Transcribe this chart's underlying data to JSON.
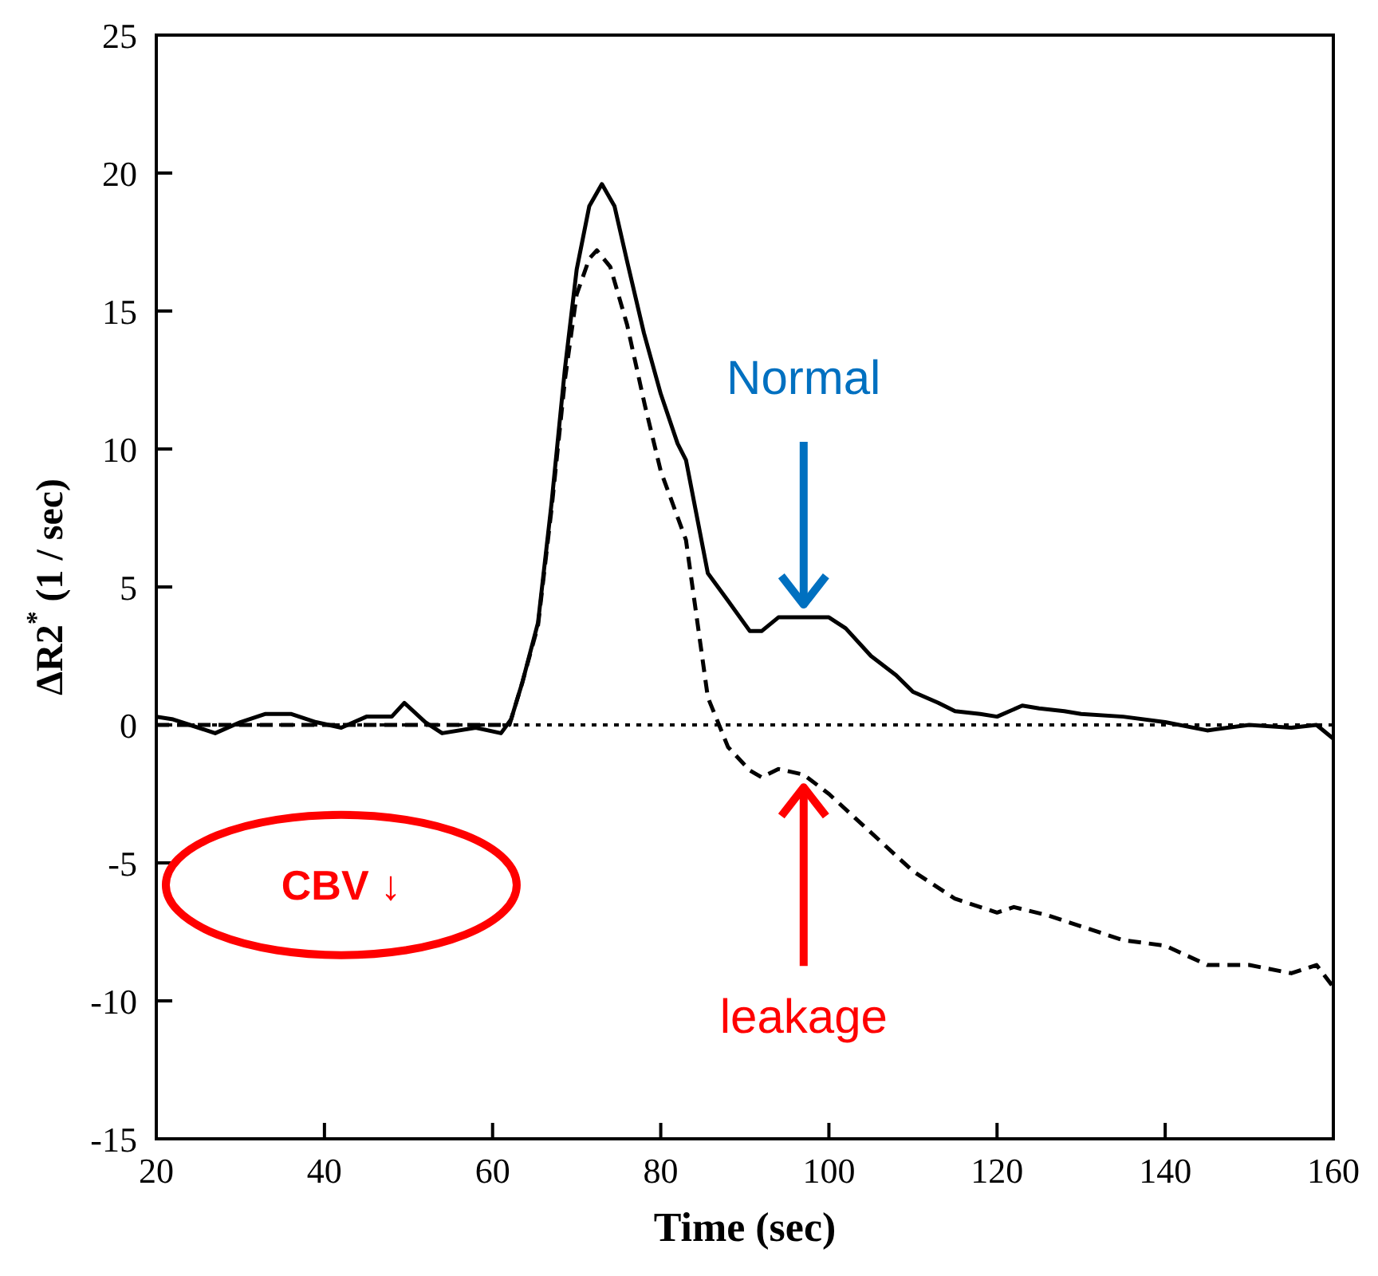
{
  "chart_data": {
    "type": "line",
    "xlabel": "Time (sec)",
    "ylabel": "ΔR2$^{*}$ (1 / sec)",
    "xlim": [
      20,
      160
    ],
    "ylim": [
      -15,
      25
    ],
    "xticks": [
      20,
      40,
      60,
      80,
      100,
      120,
      140,
      160
    ],
    "yticks": [
      -15,
      -10,
      -5,
      0,
      5,
      10,
      15,
      20,
      25
    ],
    "marker": "none",
    "series": [
      {
        "color": "#000000",
        "line_style": "solid",
        "x": [
          20,
          22,
          24,
          27,
          30,
          33,
          36,
          39,
          42,
          45,
          48,
          49.5,
          52,
          54,
          58,
          61,
          62.2,
          63.5,
          65.4,
          67,
          68.6,
          70,
          71.5,
          73,
          74.5,
          76,
          78,
          80,
          82,
          83,
          85.6,
          88,
          90.6,
          92,
          94,
          97,
          100,
          102,
          105,
          108,
          110,
          113,
          115,
          118,
          120,
          123,
          125,
          128,
          130,
          135,
          140,
          145,
          150,
          155,
          158,
          160
        ],
        "values": [
          0.3,
          0.2,
          0,
          -0.3,
          0.1,
          0.4,
          0.4,
          0.1,
          -0.1,
          0.3,
          0.3,
          0.8,
          0.1,
          -0.3,
          -0.1,
          -0.3,
          0.2,
          1.5,
          3.7,
          8,
          12.9,
          16.5,
          18.8,
          19.6,
          18.8,
          16.8,
          14.2,
          12,
          10.2,
          9.6,
          5.5,
          4.5,
          3.4,
          3.4,
          3.9,
          3.9,
          3.9,
          3.5,
          2.5,
          1.8,
          1.2,
          0.8,
          0.5,
          0.4,
          0.3,
          0.7,
          0.6,
          0.5,
          0.4,
          0.3,
          0.1,
          -0.2,
          0,
          -0.1,
          0,
          -0.5
        ]
      },
      {
        "color": "#000000",
        "line_style": "dashed",
        "x": [
          20,
          24,
          30,
          36,
          42,
          48,
          54,
          58,
          62,
          63.5,
          65.4,
          67,
          68.6,
          70,
          71.5,
          72.4,
          74,
          76,
          78.1,
          80,
          83,
          85.6,
          88,
          90.6,
          92,
          94,
          97,
          100,
          105,
          110,
          115,
          120,
          122,
          126,
          130,
          135,
          140,
          145,
          150,
          155,
          158,
          160
        ],
        "values": [
          0,
          0,
          0,
          0,
          0,
          0,
          0,
          0,
          0,
          1.5,
          3.6,
          7.8,
          12.5,
          15.6,
          16.9,
          17.2,
          16.6,
          14.5,
          11.6,
          9.2,
          6.7,
          1,
          -0.8,
          -1.65,
          -1.9,
          -1.6,
          -1.8,
          -2.5,
          -3.9,
          -5.3,
          -6.3,
          -6.8,
          -6.6,
          -6.9,
          -7.3,
          -7.8,
          -8.0,
          -8.7,
          -8.7,
          -9.0,
          -8.7,
          -9.5
        ]
      }
    ],
    "ref_lines": [
      {
        "axis": "y",
        "value": 0,
        "color": "#000000",
        "line_style": "dotted"
      }
    ],
    "annotations": [
      {
        "text": "Normal",
        "x": 97,
        "y": 3.9
      },
      {
        "text": "leakage",
        "x": 97,
        "y": -1.8
      },
      "CBV ↓"
    ]
  }
}
